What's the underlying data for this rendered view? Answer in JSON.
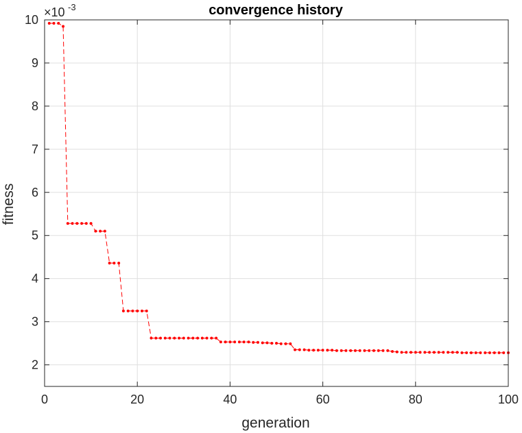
{
  "chart_data": {
    "type": "line",
    "title": "convergence history",
    "xlabel": "generation",
    "ylabel": "fitness",
    "xlim": [
      0,
      100
    ],
    "ylim": [
      0.0015,
      0.01
    ],
    "y_exponent_label": {
      "base": "×10",
      "exponent": "-3"
    },
    "grid": true,
    "xticks": [
      0,
      20,
      40,
      60,
      80,
      100
    ],
    "xtick_labels": [
      "0",
      "20",
      "40",
      "60",
      "80",
      "100"
    ],
    "yticks": [
      0.002,
      0.003,
      0.004,
      0.005,
      0.006,
      0.007,
      0.008,
      0.009,
      0.01
    ],
    "ytick_labels": [
      "2",
      "3",
      "4",
      "5",
      "6",
      "7",
      "8",
      "9",
      "10"
    ],
    "series": [
      {
        "color": "#ff0000",
        "line_style": "dashed",
        "marker": "dot",
        "x": [
          1,
          2,
          3,
          4,
          5,
          6,
          7,
          8,
          9,
          10,
          11,
          12,
          13,
          14,
          15,
          16,
          17,
          18,
          19,
          20,
          21,
          22,
          23,
          24,
          25,
          26,
          27,
          28,
          29,
          30,
          31,
          32,
          33,
          34,
          35,
          36,
          37,
          38,
          39,
          40,
          41,
          42,
          43,
          44,
          45,
          46,
          47,
          48,
          49,
          50,
          51,
          52,
          53,
          54,
          55,
          56,
          57,
          58,
          59,
          60,
          61,
          62,
          63,
          64,
          65,
          66,
          67,
          68,
          69,
          70,
          71,
          72,
          73,
          74,
          75,
          76,
          77,
          78,
          79,
          80,
          81,
          82,
          83,
          84,
          85,
          86,
          87,
          88,
          89,
          90,
          91,
          92,
          93,
          94,
          95,
          96,
          97,
          98,
          99,
          100
        ],
        "y": [
          0.00992,
          0.00992,
          0.00992,
          0.00985,
          0.00528,
          0.00528,
          0.00528,
          0.00528,
          0.00528,
          0.00528,
          0.0051,
          0.0051,
          0.0051,
          0.00436,
          0.00436,
          0.00436,
          0.00325,
          0.00325,
          0.00325,
          0.00325,
          0.00325,
          0.00325,
          0.00262,
          0.00262,
          0.00262,
          0.00262,
          0.00262,
          0.00262,
          0.00262,
          0.00262,
          0.00262,
          0.00262,
          0.00262,
          0.00262,
          0.00262,
          0.00262,
          0.00262,
          0.00253,
          0.00253,
          0.00253,
          0.00253,
          0.00253,
          0.00253,
          0.00253,
          0.00252,
          0.00252,
          0.00251,
          0.00251,
          0.0025,
          0.0025,
          0.00249,
          0.00249,
          0.00249,
          0.00235,
          0.00235,
          0.00235,
          0.00234,
          0.00234,
          0.00234,
          0.00234,
          0.00234,
          0.00234,
          0.00233,
          0.00233,
          0.00233,
          0.00233,
          0.00233,
          0.00233,
          0.00233,
          0.00233,
          0.00233,
          0.00233,
          0.00233,
          0.00233,
          0.00231,
          0.0023,
          0.00229,
          0.00229,
          0.00229,
          0.00229,
          0.00229,
          0.00229,
          0.00229,
          0.00229,
          0.00229,
          0.00229,
          0.00229,
          0.00229,
          0.00229,
          0.00228,
          0.00228,
          0.00228,
          0.00228,
          0.00228,
          0.00228,
          0.00228,
          0.00228,
          0.00228,
          0.00228,
          0.00228
        ]
      }
    ]
  },
  "colors": {
    "axes": "#262626",
    "grid": "#dfdfdf",
    "series": "#ff0000"
  }
}
